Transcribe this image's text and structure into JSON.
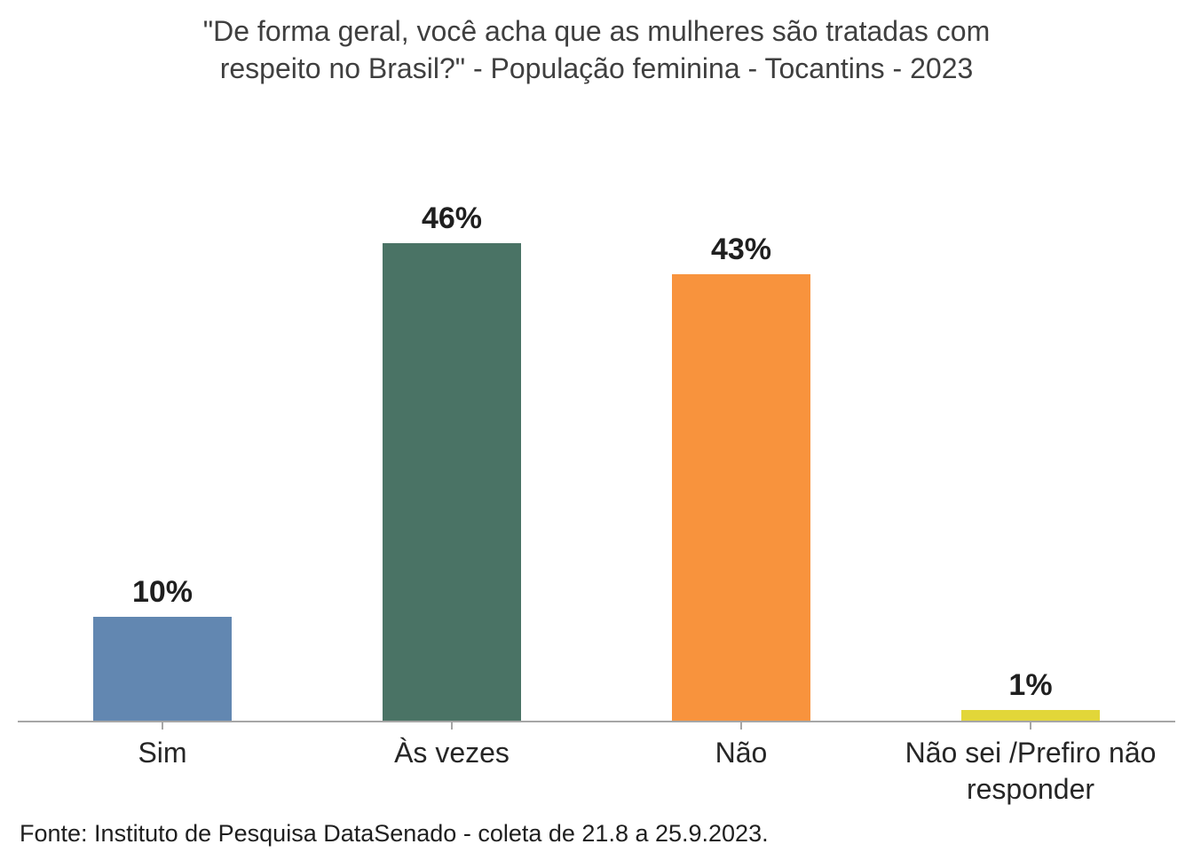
{
  "chart_data": {
    "type": "bar",
    "title": "\"De forma geral, você acha que as mulheres são tratadas com respeito no Brasil?\" - População feminina - Tocantins - 2023",
    "title_lines": [
      "\"De forma geral, você acha que as mulheres são tratadas com",
      "respeito no Brasil?\" - População feminina - Tocantins - 2023"
    ],
    "categories": [
      "Sim",
      "Às vezes",
      "Não",
      "Não sei /Prefiro não responder"
    ],
    "values": [
      10,
      46,
      43,
      1
    ],
    "value_labels": [
      "10%",
      "46%",
      "43%",
      "1%"
    ],
    "bar_colors": [
      "#6287B1",
      "#4A7365",
      "#F8933D",
      "#E2D639"
    ],
    "xlabel": "",
    "ylabel": "",
    "ylim": [
      0,
      50
    ],
    "grid": false,
    "legend": "none",
    "axis_color": "#A6A6A6",
    "title_color": "#3F3F3F",
    "value_label_color": "#1F1F1F",
    "source": "Fonte: Instituto de Pesquisa DataSenado - coleta de 21.8 a 25.9.2023."
  }
}
